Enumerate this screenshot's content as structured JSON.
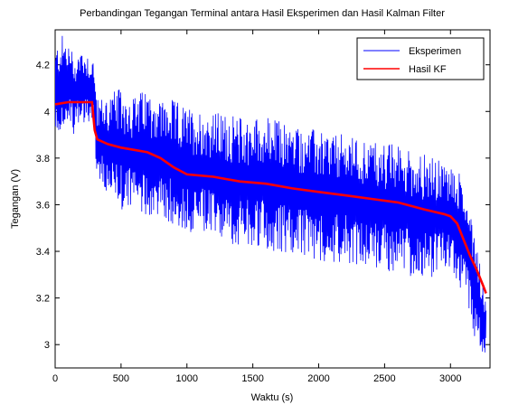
{
  "chart_data": {
    "type": "line",
    "title": "Perbandingan Tegangan Terminal antara Hasil Eksperimen dan Hasil Kalman Filter",
    "xlabel": "Waktu (s)",
    "ylabel": "Tegangan (V)",
    "xlim": [
      0,
      3300
    ],
    "ylim": [
      2.9,
      4.35
    ],
    "xticks": [
      0,
      500,
      1000,
      1500,
      2000,
      2500,
      3000
    ],
    "xtick_labels": [
      "0",
      "500",
      "1000",
      "1500",
      "2000",
      "2500",
      "3000"
    ],
    "yticks": [
      3.0,
      3.2,
      3.4,
      3.6,
      3.8,
      4.0,
      4.2
    ],
    "ytick_labels": [
      "3",
      "3.2",
      "3.4",
      "3.6",
      "3.8",
      "4",
      "4.2"
    ],
    "grid": false,
    "legend_position": "top-right",
    "colors": {
      "eksperimen": "#0000ff",
      "kf": "#ff0000"
    },
    "series": [
      {
        "name": "Eksperimen",
        "note_shape": "noisy",
        "envelope": {
          "x": [
            0,
            50,
            100,
            150,
            200,
            250,
            290,
            320,
            400,
            500,
            600,
            700,
            800,
            900,
            1000,
            1200,
            1400,
            1600,
            1800,
            2000,
            2200,
            2400,
            2600,
            2800,
            2950,
            3050,
            3100,
            3150,
            3200,
            3240,
            3270
          ],
          "upper": [
            4.27,
            4.33,
            4.3,
            4.24,
            4.28,
            4.25,
            4.23,
            4.05,
            4.08,
            4.1,
            4.07,
            4.1,
            4.06,
            4.05,
            4.02,
            4.0,
            3.98,
            3.98,
            3.95,
            3.92,
            3.9,
            3.88,
            3.86,
            3.82,
            3.78,
            3.76,
            3.7,
            3.6,
            3.45,
            3.3,
            3.2
          ],
          "lower": [
            3.88,
            3.92,
            3.92,
            3.9,
            3.95,
            3.95,
            3.94,
            3.7,
            3.62,
            3.58,
            3.56,
            3.55,
            3.54,
            3.5,
            3.48,
            3.46,
            3.42,
            3.4,
            3.38,
            3.36,
            3.35,
            3.33,
            3.3,
            3.28,
            3.3,
            3.28,
            3.2,
            3.1,
            3.0,
            2.95,
            2.93
          ]
        }
      },
      {
        "name": "Hasil KF",
        "x": [
          0,
          50,
          100,
          200,
          280,
          300,
          320,
          400,
          500,
          600,
          700,
          800,
          900,
          1000,
          1200,
          1400,
          1600,
          1800,
          2000,
          2200,
          2400,
          2600,
          2800,
          2950,
          3000,
          3050,
          3100,
          3150,
          3200,
          3250,
          3270
        ],
        "y": [
          4.03,
          4.035,
          4.04,
          4.04,
          4.04,
          3.92,
          3.88,
          3.86,
          3.845,
          3.835,
          3.825,
          3.8,
          3.76,
          3.73,
          3.72,
          3.7,
          3.69,
          3.67,
          3.655,
          3.64,
          3.625,
          3.61,
          3.58,
          3.56,
          3.55,
          3.52,
          3.45,
          3.38,
          3.32,
          3.25,
          3.22
        ]
      }
    ]
  }
}
